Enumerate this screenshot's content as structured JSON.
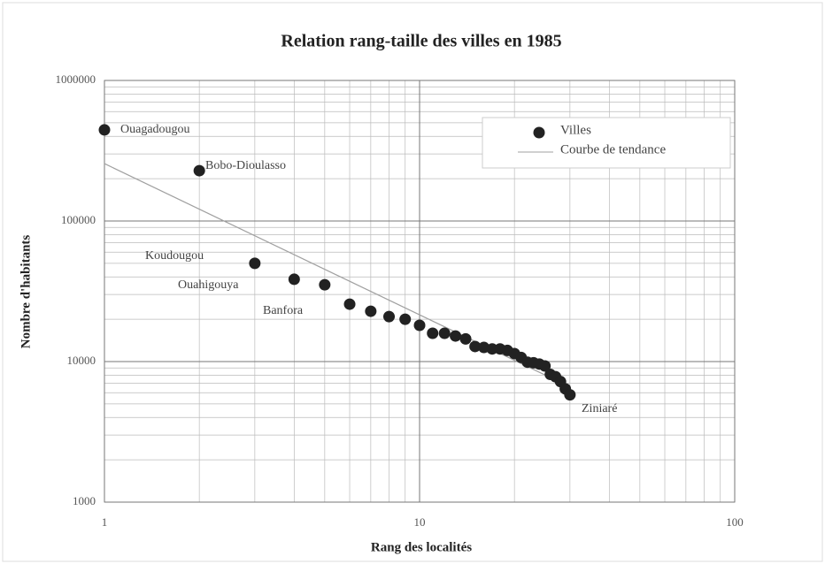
{
  "chart_data": {
    "type": "scatter",
    "title": "Relation rang-taille des villes en 1985",
    "xlabel": "Rang des localités",
    "ylabel": "Nombre d'habitants",
    "xscale": "log",
    "yscale": "log",
    "xlim": [
      1,
      100
    ],
    "ylim": [
      1000,
      1000000
    ],
    "xticks": [
      1,
      10,
      100
    ],
    "yticks": [
      1000,
      10000,
      100000,
      1000000
    ],
    "grid": true,
    "legend": "upper right",
    "series": [
      {
        "name": "Villes",
        "type": "scatter",
        "color": "#222222",
        "x": [
          1,
          2,
          3,
          4,
          5,
          6,
          7,
          8,
          9,
          10,
          11,
          12,
          13,
          14,
          15,
          16,
          17,
          18,
          19,
          20,
          21,
          22,
          23,
          24,
          25,
          26,
          27,
          28,
          29,
          30
        ],
        "values": [
          445000,
          228000,
          50000,
          38500,
          35200,
          25600,
          22800,
          20900,
          20000,
          18100,
          15900,
          15900,
          15200,
          14500,
          12800,
          12600,
          12300,
          12300,
          12000,
          11400,
          10700,
          9900,
          9800,
          9600,
          9300,
          8100,
          7800,
          7200,
          6400,
          5800
        ]
      },
      {
        "name": "Courbe de tendance",
        "type": "line",
        "color": "#a0a0a0",
        "x": [
          1,
          30
        ],
        "values": [
          256000,
          6600
        ]
      }
    ],
    "annotations": [
      "Ouagadougou",
      "Bobo-Dioulasso",
      "Koudougou",
      "Ouahigouya",
      "Banfora",
      "Ziniaré"
    ]
  }
}
